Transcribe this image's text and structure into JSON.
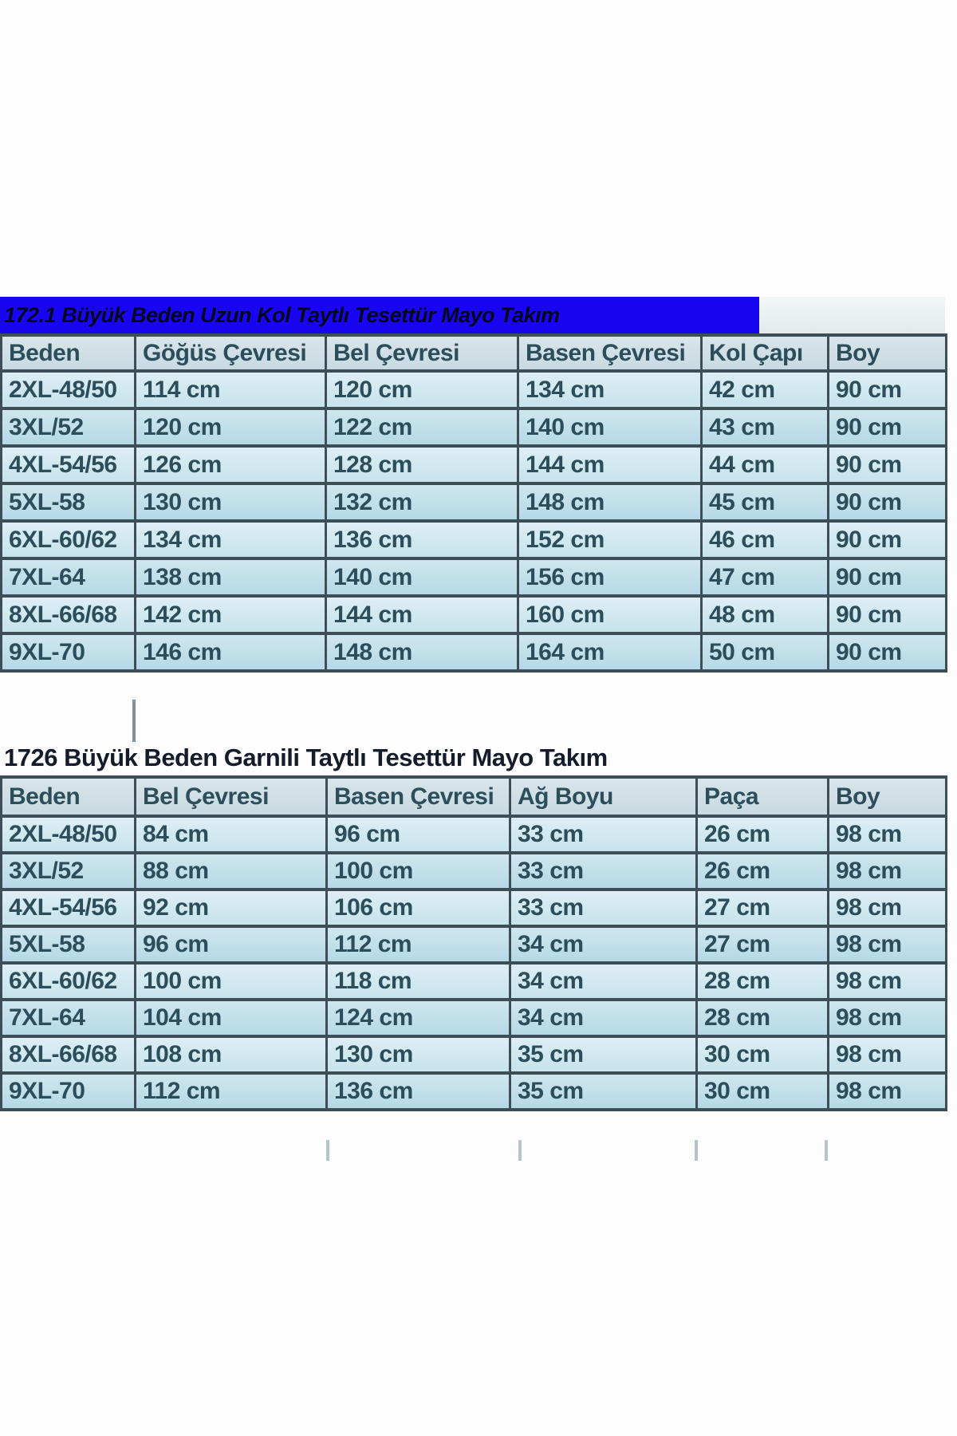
{
  "colors": {
    "title_bar_bg": "#1806f2",
    "title_bar_text": "#05051f",
    "grid_border": "#3d4e56",
    "cell_text": "#2c4e5c",
    "header_bg": "#cfdee4",
    "row_light": "#d4e9f0",
    "row_dark": "#c2e0ea",
    "title2_text": "#141c2b",
    "page_bg": "#ffffff"
  },
  "chart_data": [
    {
      "type": "table",
      "title": "172.1 Büyük Beden Uzun Kol Taytlı Tesettür Mayo Takım",
      "columns": [
        "Beden",
        "Göğüs Çevresi",
        "Bel Çevresi",
        "Basen Çevresi",
        "Kol Çapı",
        "Boy"
      ],
      "rows": [
        [
          "2XL-48/50",
          "114 cm",
          "120 cm",
          "134 cm",
          "42 cm",
          "90 cm"
        ],
        [
          "3XL/52",
          "120 cm",
          "122 cm",
          "140 cm",
          "43 cm",
          "90 cm"
        ],
        [
          "4XL-54/56",
          "126 cm",
          "128 cm",
          "144 cm",
          "44 cm",
          "90 cm"
        ],
        [
          "5XL-58",
          "130 cm",
          "132 cm",
          "148 cm",
          "45 cm",
          "90 cm"
        ],
        [
          "6XL-60/62",
          "134 cm",
          "136 cm",
          "152 cm",
          "46 cm",
          "90 cm"
        ],
        [
          "7XL-64",
          "138 cm",
          "140 cm",
          "156 cm",
          "47 cm",
          "90 cm"
        ],
        [
          "8XL-66/68",
          "142 cm",
          "144 cm",
          "160 cm",
          "48 cm",
          "90 cm"
        ],
        [
          "9XL-70",
          "146 cm",
          "148 cm",
          "164 cm",
          "50 cm",
          "90 cm"
        ]
      ]
    },
    {
      "type": "table",
      "title": "1726 Büyük Beden Garnili Taytlı Tesettür Mayo Takım",
      "columns": [
        "Beden",
        "Bel Çevresi",
        "Basen Çevresi",
        "Ağ Boyu",
        "Paça",
        "Boy"
      ],
      "rows": [
        [
          "2XL-48/50",
          "84 cm",
          "96 cm",
          "33 cm",
          "26 cm",
          "98 cm"
        ],
        [
          "3XL/52",
          "88 cm",
          "100 cm",
          "33 cm",
          "26 cm",
          "98 cm"
        ],
        [
          "4XL-54/56",
          "92 cm",
          "106 cm",
          "33 cm",
          "27 cm",
          "98 cm"
        ],
        [
          "5XL-58",
          "96 cm",
          "112 cm",
          "34 cm",
          "27 cm",
          "98 cm"
        ],
        [
          "6XL-60/62",
          "100 cm",
          "118 cm",
          "34 cm",
          "28 cm",
          "98 cm"
        ],
        [
          "7XL-64",
          "104 cm",
          "124 cm",
          "34 cm",
          "28 cm",
          "98 cm"
        ],
        [
          "8XL-66/68",
          "108 cm",
          "130 cm",
          "35 cm",
          "30 cm",
          "98 cm"
        ],
        [
          "9XL-70",
          "112 cm",
          "136 cm",
          "35 cm",
          "30 cm",
          "98 cm"
        ]
      ]
    }
  ]
}
